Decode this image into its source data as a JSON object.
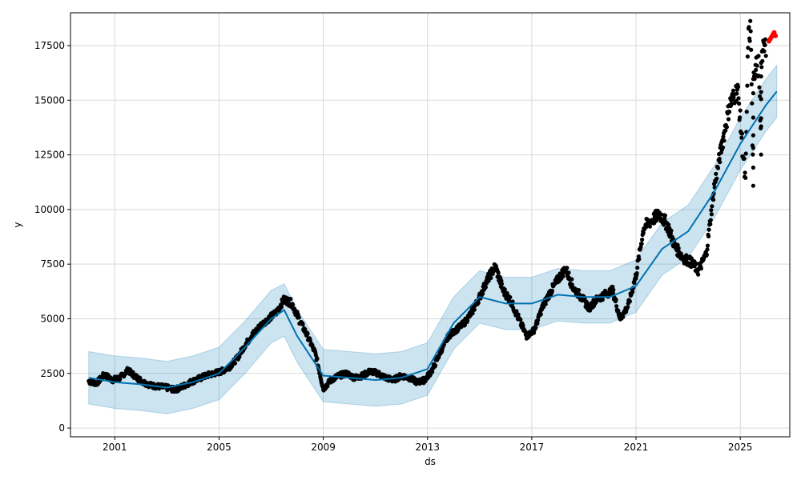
{
  "chart_data": {
    "type": "line",
    "title": "",
    "xlabel": "ds",
    "ylabel": "y",
    "xlim": [
      1999.3,
      2026.9
    ],
    "ylim": [
      -400,
      19000
    ],
    "grid": true,
    "x_ticks": [
      2001,
      2005,
      2009,
      2013,
      2017,
      2021,
      2025
    ],
    "x_tick_labels": [
      "2001",
      "2005",
      "2009",
      "2013",
      "2017",
      "2021",
      "2025"
    ],
    "y_ticks": [
      0,
      2500,
      5000,
      7500,
      10000,
      12500,
      15000,
      17500
    ],
    "y_tick_labels": [
      "0",
      "2500",
      "5000",
      "7500",
      "10000",
      "12500",
      "15000",
      "17500"
    ],
    "colors": {
      "observed": "#000000",
      "forecast": "#0072B2",
      "interval": "#0072B2",
      "recent": "#ff0000"
    },
    "series": [
      {
        "kind": "observed",
        "x": [
          2000.0,
          2000.3,
          2000.6,
          2000.9,
          2001.2,
          2001.5,
          2001.8,
          2002.1,
          2002.4,
          2002.7,
          2003.0,
          2003.3,
          2003.6,
          2003.9,
          2004.2,
          2004.5,
          2004.8,
          2005.1,
          2005.4,
          2005.7,
          2006.0,
          2006.3,
          2006.6,
          2006.9,
          2007.2,
          2007.5,
          2007.8,
          2008.1,
          2008.4,
          2008.7,
          2009.0,
          2009.3,
          2009.6,
          2009.9,
          2010.2,
          2010.5,
          2010.8,
          2011.1,
          2011.4,
          2011.7,
          2012.0,
          2012.3,
          2012.6,
          2012.9,
          2013.2,
          2013.5,
          2013.8,
          2014.1,
          2014.4,
          2014.7,
          2015.0,
          2015.3,
          2015.6,
          2015.9,
          2016.2,
          2016.5,
          2016.8,
          2017.1,
          2017.4,
          2017.7,
          2018.0,
          2018.3,
          2018.6,
          2018.9,
          2019.2,
          2019.5,
          2019.8,
          2020.1,
          2020.4,
          2020.7,
          2021.0,
          2021.3,
          2021.6,
          2021.9,
          2022.2,
          2022.5,
          2022.8,
          2023.1,
          2023.4,
          2023.7,
          2024.0,
          2024.3,
          2024.6,
          2024.9,
          2025.2,
          2025.5,
          2025.8
        ],
        "y": [
          2150,
          2050,
          2450,
          2200,
          2300,
          2650,
          2350,
          2100,
          1950,
          1900,
          1850,
          1750,
          1900,
          2100,
          2250,
          2400,
          2500,
          2600,
          2800,
          3200,
          3800,
          4300,
          4700,
          5000,
          5300,
          5900,
          5700,
          4900,
          4200,
          3400,
          1800,
          2200,
          2400,
          2500,
          2300,
          2400,
          2600,
          2500,
          2300,
          2200,
          2400,
          2300,
          2100,
          2200,
          2700,
          3500,
          4200,
          4500,
          4800,
          5300,
          6000,
          6800,
          7400,
          6300,
          5800,
          5000,
          4200,
          4500,
          5500,
          6200,
          6800,
          7300,
          6400,
          6000,
          5500,
          5900,
          6100,
          6300,
          5000,
          5600,
          7000,
          9200,
          9500,
          9800,
          9300,
          8300,
          7800,
          7600,
          7200,
          8000,
          11000,
          13000,
          14800,
          15500,
          11200,
          10800,
          12800
        ],
        "values_late": [
          [
            2025.3,
            17800
          ],
          [
            2025.4,
            18300
          ],
          [
            2025.5,
            16300
          ],
          [
            2025.6,
            16500
          ],
          [
            2025.7,
            16600
          ],
          [
            2025.8,
            16900
          ],
          [
            2025.9,
            17300
          ],
          [
            2026.0,
            17500
          ]
        ]
      },
      {
        "kind": "forecast",
        "x": [
          2000.0,
          2001.0,
          2002.0,
          2003.0,
          2004.0,
          2005.0,
          2006.0,
          2007.0,
          2007.5,
          2008.0,
          2009.0,
          2010.0,
          2011.0,
          2012.0,
          2013.0,
          2014.0,
          2015.0,
          2016.0,
          2017.0,
          2018.0,
          2019.0,
          2020.0,
          2021.0,
          2022.0,
          2023.0,
          2024.0,
          2025.0,
          2026.0,
          2026.4
        ],
        "y": [
          2300,
          2100,
          2000,
          1850,
          2100,
          2500,
          3700,
          5000,
          5400,
          4200,
          2400,
          2300,
          2200,
          2300,
          2700,
          4800,
          6000,
          5700,
          5700,
          6100,
          6000,
          6000,
          6500,
          8200,
          9000,
          10800,
          13000,
          14800,
          15400
        ]
      },
      {
        "kind": "interval",
        "x": [
          2000.0,
          2001.0,
          2002.0,
          2003.0,
          2004.0,
          2005.0,
          2006.0,
          2007.0,
          2007.5,
          2008.0,
          2009.0,
          2010.0,
          2011.0,
          2012.0,
          2013.0,
          2014.0,
          2015.0,
          2016.0,
          2017.0,
          2018.0,
          2019.0,
          2020.0,
          2021.0,
          2022.0,
          2023.0,
          2024.0,
          2025.0,
          2026.0,
          2026.4
        ],
        "lower": [
          1100,
          900,
          800,
          650,
          900,
          1300,
          2500,
          3900,
          4200,
          3000,
          1200,
          1100,
          1000,
          1100,
          1500,
          3600,
          4800,
          4500,
          4500,
          4900,
          4800,
          4800,
          5300,
          7000,
          7800,
          9600,
          11800,
          13600,
          14200
        ],
        "upper": [
          3500,
          3300,
          3200,
          3050,
          3300,
          3700,
          4900,
          6300,
          6600,
          5400,
          3600,
          3500,
          3400,
          3500,
          3900,
          6000,
          7200,
          6900,
          6900,
          7300,
          7200,
          7200,
          7700,
          9400,
          10200,
          12000,
          14200,
          16000,
          16600
        ]
      },
      {
        "kind": "recent",
        "x": [
          2026.1,
          2026.15,
          2026.2,
          2026.25,
          2026.3,
          2026.35
        ],
        "y": [
          17700,
          17800,
          17900,
          18000,
          18100,
          17950
        ]
      }
    ]
  }
}
